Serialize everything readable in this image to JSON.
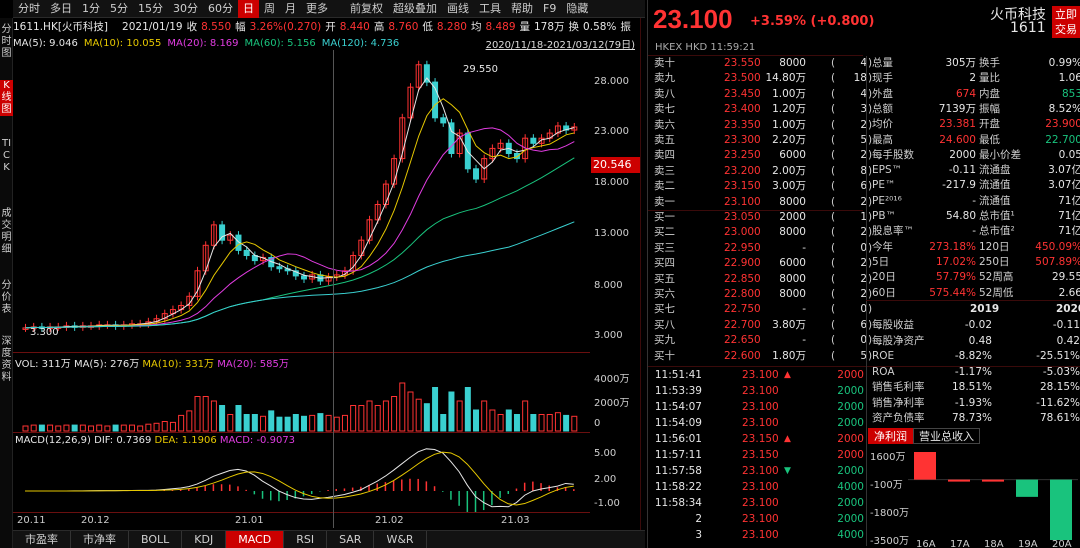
{
  "left_tabs": [
    "分时图",
    "K线图",
    "TICK",
    "成交明细",
    "分价表",
    "深度资料"
  ],
  "top_menu": {
    "items": [
      "分时",
      "多日",
      "1分",
      "5分",
      "15分",
      "30分",
      "60分",
      "日",
      "周",
      "月",
      "更多"
    ],
    "active": "日",
    "tools": [
      "前复权",
      "超级叠加",
      "画线",
      "工具",
      "帮助",
      "F9",
      "隐藏"
    ]
  },
  "info": {
    "code_name": "1611.HK[火币科技]",
    "date": "2021/01/19",
    "close_label": "收",
    "close": "8.550",
    "chg_label": "幅",
    "chg": "3.26%(0.270)",
    "open_label": "开",
    "open": "8.440",
    "high_label": "高",
    "high": "8.760",
    "low_label": "低",
    "low": "8.280",
    "avg_label": "均",
    "avg": "8.489",
    "vol_label": "量",
    "vol": "178万",
    "turn_label": "换",
    "turn": "0.58%",
    "more_label": "振"
  },
  "ma": {
    "ma5": "MA(5): 9.046",
    "ma10": "MA(10): 10.055",
    "ma20": "MA(20): 8.169",
    "ma60": "MA(60): 5.156",
    "ma120": "MA(120): 4.736",
    "range": "2020/11/18-2021/03/12(79日)"
  },
  "price_axis": {
    "ticks": [
      "28.000",
      "23.000",
      "18.000",
      "13.000",
      "8.000",
      "3.000"
    ],
    "current": "20.546",
    "high_mark": "29.550",
    "low_mark": "3.300"
  },
  "vol_panel": {
    "label": "VOL: 311万",
    "ma5": "MA(5): 276万",
    "ma10": "MA(10): 331万",
    "ma20": "MA(20): 585万",
    "ticks": [
      "4000万",
      "2000万",
      "0"
    ]
  },
  "macd_panel": {
    "label": "MACD(12,26,9)",
    "dif": "DIF: 0.7369",
    "dea": "DEA: 1.1906",
    "macd": "MACD: -0.9073",
    "ticks": [
      "5.00",
      "2.00",
      "-1.00"
    ]
  },
  "x_labels": [
    "20.11",
    "20.12",
    "21.01",
    "21.02",
    "21.03"
  ],
  "bottom_tabs": [
    "市盈率",
    "市净率",
    "BOLL",
    "KDJ",
    "MACD",
    "RSI",
    "SAR",
    "W&R"
  ],
  "bottom_active": "MACD",
  "quote": {
    "price": "23.100",
    "change": "+3.59% (+0.800)",
    "name": "火币科技",
    "code": "1611",
    "trade_btn": "立即交易",
    "exchange": "HKEX  HKD  11:59:21"
  },
  "order_book": [
    {
      "label": "卖十",
      "price": "23.550",
      "vol": "8000",
      "n": "4"
    },
    {
      "label": "卖九",
      "price": "23.500",
      "vol": "14.80万",
      "n": "18"
    },
    {
      "label": "卖八",
      "price": "23.450",
      "vol": "1.00万",
      "n": "4"
    },
    {
      "label": "卖七",
      "price": "23.400",
      "vol": "1.20万",
      "n": "3"
    },
    {
      "label": "卖六",
      "price": "23.350",
      "vol": "1.00万",
      "n": "2"
    },
    {
      "label": "卖五",
      "price": "23.300",
      "vol": "2.20万",
      "n": "5"
    },
    {
      "label": "卖四",
      "price": "23.250",
      "vol": "6000",
      "n": "2"
    },
    {
      "label": "卖三",
      "price": "23.200",
      "vol": "2.00万",
      "n": "8"
    },
    {
      "label": "卖二",
      "price": "23.150",
      "vol": "3.00万",
      "n": "6"
    },
    {
      "label": "卖一",
      "price": "23.100",
      "vol": "8000",
      "n": "2"
    },
    {
      "label": "买一",
      "price": "23.050",
      "vol": "2000",
      "n": "1"
    },
    {
      "label": "买二",
      "price": "23.000",
      "vol": "8000",
      "n": "2"
    },
    {
      "label": "买三",
      "price": "22.950",
      "vol": "-",
      "n": "0"
    },
    {
      "label": "买四",
      "price": "22.900",
      "vol": "6000",
      "n": "2"
    },
    {
      "label": "买五",
      "price": "22.850",
      "vol": "8000",
      "n": "2"
    },
    {
      "label": "买六",
      "price": "22.800",
      "vol": "8000",
      "n": "2"
    },
    {
      "label": "买七",
      "price": "22.750",
      "vol": "-",
      "n": "0"
    },
    {
      "label": "买八",
      "price": "22.700",
      "vol": "3.80万",
      "n": "6"
    },
    {
      "label": "买九",
      "price": "22.650",
      "vol": "-",
      "n": "0"
    },
    {
      "label": "买十",
      "price": "22.600",
      "vol": "1.80万",
      "n": "5"
    }
  ],
  "stats": [
    {
      "k1": "总量",
      "v1": "305万",
      "c1": "white",
      "k2": "换手",
      "v2": "0.99%",
      "c2": "white"
    },
    {
      "k1": "现手",
      "v1": "2",
      "c1": "white",
      "k2": "量比",
      "v2": "1.06",
      "c2": "white"
    },
    {
      "k1": "外盘",
      "v1": "674",
      "c1": "red",
      "k2": "内盘",
      "v2": "853",
      "c2": "green"
    },
    {
      "k1": "总额",
      "v1": "7139万",
      "c1": "white",
      "k2": "振幅",
      "v2": "8.52%",
      "c2": "white"
    },
    {
      "k1": "均价",
      "v1": "23.381",
      "c1": "red",
      "k2": "开盘",
      "v2": "23.900",
      "c2": "red"
    },
    {
      "k1": "最高",
      "v1": "24.600",
      "c1": "red",
      "k2": "最低",
      "v2": "22.700",
      "c2": "green"
    },
    {
      "k1": "每手股数",
      "v1": "2000",
      "c1": "white",
      "k2": "最小价差",
      "v2": "0.05",
      "c2": "white"
    },
    {
      "k1": "EPS™",
      "v1": "-0.11",
      "c1": "white",
      "k2": "流通盘",
      "v2": "3.07亿",
      "c2": "white"
    },
    {
      "k1": "PE™",
      "v1": "-217.9",
      "c1": "white",
      "k2": "流通值",
      "v2": "3.07亿",
      "c2": "white"
    },
    {
      "k1": "PE²⁰¹⁶",
      "v1": "-",
      "c1": "white",
      "k2": "流通值",
      "v2": "71亿",
      "c2": "white"
    },
    {
      "k1": "PB™",
      "v1": "54.80",
      "c1": "white",
      "k2": "总市值¹",
      "v2": "71亿",
      "c2": "white"
    },
    {
      "k1": "股息率™",
      "v1": "-",
      "c1": "white",
      "k2": "总市值²",
      "v2": "71亿",
      "c2": "white"
    },
    {
      "k1": "今年",
      "v1": "273.18%",
      "c1": "red",
      "k2": "120日",
      "v2": "450.09%",
      "c2": "red"
    },
    {
      "k1": "5日",
      "v1": "17.02%",
      "c1": "red",
      "k2": "250日",
      "v2": "507.89%",
      "c2": "red"
    },
    {
      "k1": "20日",
      "v1": "57.79%",
      "c1": "red",
      "k2": "52周高",
      "v2": "29.55",
      "c2": "white"
    },
    {
      "k1": "60日",
      "v1": "575.44%",
      "c1": "red",
      "k2": "52周低",
      "v2": "2.66",
      "c2": "white"
    }
  ],
  "fin_header": {
    "y1": "2019",
    "y2": "2020"
  },
  "fin_rows": [
    {
      "k": "每股收益",
      "a": "-0.02",
      "b": "-0.11"
    },
    {
      "k": "每股净资产",
      "a": "0.48",
      "b": "0.42"
    },
    {
      "k": "ROE",
      "a": "-8.82%",
      "b": "-25.51%"
    },
    {
      "k": "ROA",
      "a": "-1.17%",
      "b": "-5.03%"
    },
    {
      "k": "销售毛利率",
      "a": "18.51%",
      "b": "28.15%"
    },
    {
      "k": "销售净利率",
      "a": "-1.93%",
      "b": "-11.62%"
    },
    {
      "k": "资产负债率",
      "a": "78.73%",
      "b": "78.61%"
    }
  ],
  "ticks": [
    {
      "t": "11:51:41",
      "p": "23.100",
      "d": "up",
      "v": "2000",
      "vc": "red"
    },
    {
      "t": "11:53:39",
      "p": "23.100",
      "d": "",
      "v": "2000",
      "vc": "green"
    },
    {
      "t": "11:54:07",
      "p": "23.100",
      "d": "",
      "v": "2000",
      "vc": "green"
    },
    {
      "t": "11:54:09",
      "p": "23.100",
      "d": "",
      "v": "2000",
      "vc": "green"
    },
    {
      "t": "11:56:01",
      "p": "23.150",
      "d": "up",
      "v": "2000",
      "vc": "red"
    },
    {
      "t": "11:57:11",
      "p": "23.150",
      "d": "",
      "v": "2000",
      "vc": "red"
    },
    {
      "t": "11:57:58",
      "p": "23.100",
      "d": "down",
      "v": "2000",
      "vc": "green"
    },
    {
      "t": "11:58:22",
      "p": "23.100",
      "d": "",
      "v": "4000",
      "vc": "green"
    },
    {
      "t": "11:58:34",
      "p": "23.100",
      "d": "",
      "v": "2000",
      "vc": "green"
    },
    {
      "t": "2",
      "p": "23.100",
      "d": "",
      "v": "2000",
      "vc": "green"
    },
    {
      "t": "3",
      "p": "23.100",
      "d": "",
      "v": "4000",
      "vc": "green"
    }
  ],
  "right_tabs": [
    "净利润",
    "营业总收入"
  ],
  "profit_chart": {
    "y_ticks": [
      "1600万",
      "-100万",
      "-1800万",
      "-3500万"
    ],
    "x_labels": [
      "16A",
      "17A",
      "18A",
      "19A",
      "20A"
    ]
  },
  "chart_data": {
    "type": "bar",
    "categories": [
      "16A",
      "17A",
      "18A",
      "19A",
      "20A"
    ],
    "values": [
      1600,
      -100,
      -100,
      -1000,
      -3500
    ],
    "ylim": [
      -3500,
      1600
    ],
    "colors": [
      "#ff3333",
      "#ff3333",
      "#ff3333",
      "#19c37d",
      "#19c37d"
    ]
  }
}
